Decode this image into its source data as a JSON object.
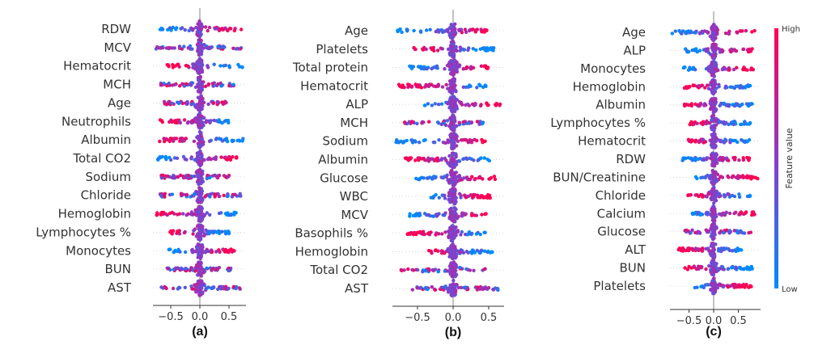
{
  "chart_data": [
    {
      "type": "scatter",
      "subtype": "shap-beeswarm",
      "caption": "(a)",
      "xticks": [
        "-0.5",
        "0.0",
        "0.5"
      ],
      "tick_values": [
        -0.5,
        0.0,
        0.5
      ],
      "xlim": [
        -0.8,
        0.8
      ],
      "features": [
        {
          "name": "RDW",
          "min": -0.68,
          "max": 0.71,
          "high_value_direction": 1
        },
        {
          "name": "MCV",
          "min": -0.75,
          "max": 0.71,
          "high_value_direction": 0
        },
        {
          "name": "Hematocrit",
          "min": -0.56,
          "max": 0.73,
          "high_value_direction": -1
        },
        {
          "name": "MCH",
          "min": -0.67,
          "max": 0.58,
          "high_value_direction": 0
        },
        {
          "name": "Age",
          "min": -0.61,
          "max": 0.45,
          "high_value_direction": 0
        },
        {
          "name": "Neutrophils",
          "min": -0.68,
          "max": 0.49,
          "high_value_direction": -1
        },
        {
          "name": "Albumin",
          "min": -0.69,
          "max": 0.74,
          "high_value_direction": -1
        },
        {
          "name": "Total CO2",
          "min": -0.72,
          "max": 0.63,
          "high_value_direction": 1
        },
        {
          "name": "Sodium",
          "min": -0.66,
          "max": 0.5,
          "high_value_direction": 0
        },
        {
          "name": "Chloride",
          "min": -0.68,
          "max": 0.7,
          "high_value_direction": 0
        },
        {
          "name": "Hemoglobin",
          "min": -0.74,
          "max": 0.62,
          "high_value_direction": -1
        },
        {
          "name": "Lymphocytes %",
          "min": -0.51,
          "max": 0.5,
          "high_value_direction": -1
        },
        {
          "name": "Monocytes",
          "min": -0.53,
          "max": 0.59,
          "high_value_direction": 1
        },
        {
          "name": "BUN",
          "min": -0.56,
          "max": 0.53,
          "high_value_direction": 0
        },
        {
          "name": "AST",
          "min": -0.66,
          "max": 0.69,
          "high_value_direction": 0
        }
      ]
    },
    {
      "type": "scatter",
      "subtype": "shap-beeswarm",
      "caption": "(b)",
      "xticks": [
        "-0.5",
        "0.0",
        "0.5"
      ],
      "tick_values": [
        -0.5,
        0.0,
        0.5
      ],
      "xlim": [
        -0.85,
        0.7
      ],
      "features": [
        {
          "name": "Age",
          "min": -0.78,
          "max": 0.47,
          "high_value_direction": 1
        },
        {
          "name": "Platelets",
          "min": -0.55,
          "max": 0.57,
          "high_value_direction": -1
        },
        {
          "name": "Total protein",
          "min": -0.61,
          "max": 0.49,
          "high_value_direction": 1
        },
        {
          "name": "Hematocrit",
          "min": -0.76,
          "max": 0.46,
          "high_value_direction": -1
        },
        {
          "name": "ALP",
          "min": -0.4,
          "max": 0.66,
          "high_value_direction": 1
        },
        {
          "name": "MCH",
          "min": -0.68,
          "max": 0.42,
          "high_value_direction": 0
        },
        {
          "name": "Sodium",
          "min": -0.8,
          "max": 0.45,
          "high_value_direction": 1
        },
        {
          "name": "Albumin",
          "min": -0.67,
          "max": 0.51,
          "high_value_direction": -1
        },
        {
          "name": "Glucose",
          "min": -0.52,
          "max": 0.59,
          "high_value_direction": 1
        },
        {
          "name": "WBC",
          "min": -0.31,
          "max": 0.52,
          "high_value_direction": 1
        },
        {
          "name": "MCV",
          "min": -0.61,
          "max": 0.46,
          "high_value_direction": 1
        },
        {
          "name": "Basophils %",
          "min": -0.64,
          "max": 0.45,
          "high_value_direction": -1
        },
        {
          "name": "Hemoglobin",
          "min": -0.34,
          "max": 0.55,
          "high_value_direction": -1
        },
        {
          "name": "Total CO2",
          "min": -0.73,
          "max": 0.45,
          "high_value_direction": 0
        },
        {
          "name": "AST",
          "min": -0.57,
          "max": 0.63,
          "high_value_direction": 0
        }
      ]
    },
    {
      "type": "scatter",
      "subtype": "shap-beeswarm",
      "caption": "(c)",
      "xticks": [
        "-0.5",
        "0.0",
        "0.5"
      ],
      "tick_values": [
        -0.5,
        0.0,
        0.5
      ],
      "xlim": [
        -0.9,
        0.95
      ],
      "features": [
        {
          "name": "Age",
          "min": -0.84,
          "max": 0.83,
          "high_value_direction": 1
        },
        {
          "name": "ALP",
          "min": -0.57,
          "max": 0.78,
          "high_value_direction": 1
        },
        {
          "name": "Monocytes",
          "min": -0.61,
          "max": 0.8,
          "high_value_direction": 1
        },
        {
          "name": "Hemoglobin",
          "min": -0.59,
          "max": 0.74,
          "high_value_direction": -1
        },
        {
          "name": "Albumin",
          "min": -0.59,
          "max": 0.78,
          "high_value_direction": -1
        },
        {
          "name": "Lymphocytes %",
          "min": -0.48,
          "max": 0.74,
          "high_value_direction": -1
        },
        {
          "name": "Hematocrit",
          "min": -0.51,
          "max": 0.72,
          "high_value_direction": -1
        },
        {
          "name": "RDW",
          "min": -0.63,
          "max": 0.72,
          "high_value_direction": 1
        },
        {
          "name": "BUN/Creatinine",
          "min": -0.36,
          "max": 0.89,
          "high_value_direction": 1
        },
        {
          "name": "Chloride",
          "min": -0.52,
          "max": 0.74,
          "high_value_direction": -1
        },
        {
          "name": "Calcium",
          "min": -0.43,
          "max": 0.83,
          "high_value_direction": 1
        },
        {
          "name": "Glucose",
          "min": -0.58,
          "max": 0.75,
          "high_value_direction": 0
        },
        {
          "name": "ALT",
          "min": -0.71,
          "max": 0.56,
          "high_value_direction": -1
        },
        {
          "name": "BUN",
          "min": -0.58,
          "max": 0.78,
          "high_value_direction": -1
        },
        {
          "name": "Platelets",
          "min": -0.38,
          "max": 0.76,
          "high_value_direction": 1
        }
      ]
    }
  ],
  "colorbar": {
    "title": "Feature value",
    "high_label": "High",
    "low_label": "Low",
    "high_color": "#ff0052",
    "mid_color": "#8a3cc8",
    "low_color": "#008bfb"
  }
}
